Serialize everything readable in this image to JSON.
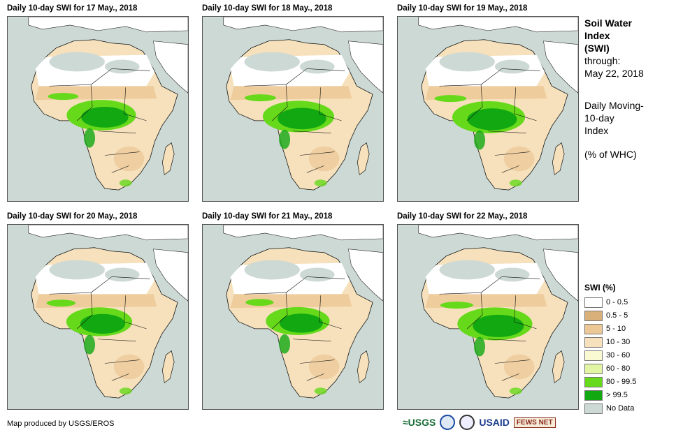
{
  "panels": [
    {
      "title": "Daily 10-day  SWI for 17 May., 2018"
    },
    {
      "title": "Daily 10-day  SWI for 18 May., 2018"
    },
    {
      "title": "Daily 10-day  SWI for 19 May., 2018"
    },
    {
      "title": "Daily 10-day  SWI for 20 May., 2018"
    },
    {
      "title": "Daily 10-day  SWI for 21 May., 2018"
    },
    {
      "title": "Daily 10-day  SWI for 22 May., 2018"
    }
  ],
  "side_info": {
    "heading_1": "Soil Water",
    "heading_2": "Index",
    "heading_3": "(SWI)",
    "through_label": "through:",
    "through_date": "May 22, 2018",
    "desc_1": "Daily Moving-",
    "desc_2": "10-day",
    "desc_3": "Index",
    "units": "(% of WHC)"
  },
  "legend": {
    "title": "SWI (%)",
    "items": [
      {
        "label": "0 - 0.5",
        "color": "#ffffff"
      },
      {
        "label": "0.5 - 5",
        "color": "#d9b07a"
      },
      {
        "label": "5 - 10",
        "color": "#ecc896"
      },
      {
        "label": "10 - 30",
        "color": "#f6e1bc"
      },
      {
        "label": "30 - 60",
        "color": "#fafad2"
      },
      {
        "label": "60 - 80",
        "color": "#e2f5a4"
      },
      {
        "label": "80 - 99.5",
        "color": "#66d91a"
      },
      {
        "label": "> 99.5",
        "color": "#11a811"
      },
      {
        "label": "No Data",
        "color": "#cdd9d4"
      }
    ]
  },
  "credit": "Map produced by USGS/EROS",
  "logos": {
    "usgs": "≈USGS",
    "usaid": "USAID",
    "fews": "FEWS NET"
  },
  "colors": {
    "ocean": "#cdd9d4",
    "dry": "#ecc896",
    "moist": "#f6e1bc",
    "wet": "#66d91a",
    "saturated": "#11a811",
    "desert_nodata": "#cdd9d4"
  }
}
